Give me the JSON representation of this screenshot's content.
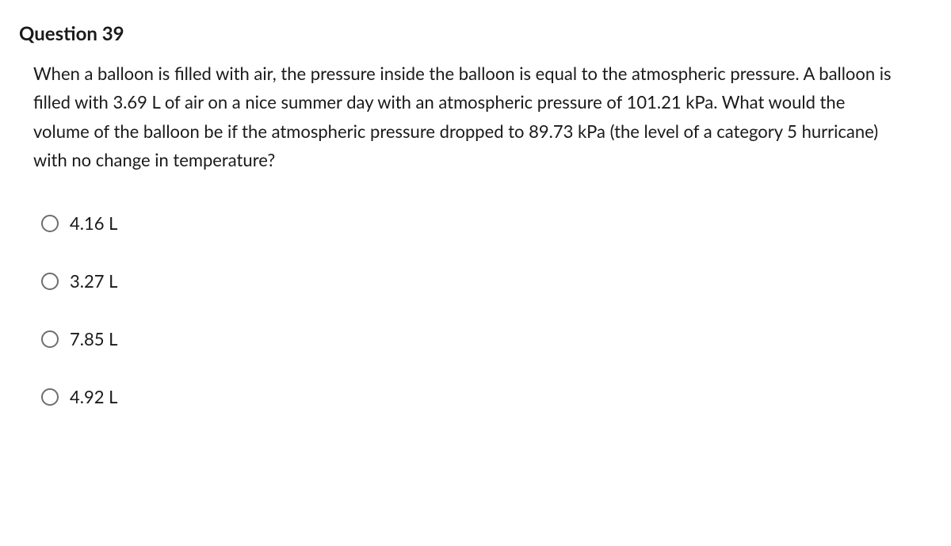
{
  "question": {
    "number": "Question 39",
    "text": "When a balloon is filled with air, the pressure inside the balloon is equal to the atmospheric pressure. A balloon is filled with 3.69 L of air on a nice summer day with an atmospheric pressure of 101.21 kPa. What would the volume of the balloon be if the atmospheric pressure dropped to 89.73 kPa (the level of a category 5 hurricane) with no change in temperature?",
    "options": [
      {
        "label": "4.16 L",
        "selected": false
      },
      {
        "label": "3.27 L",
        "selected": false
      },
      {
        "label": "7.85 L",
        "selected": false
      },
      {
        "label": "4.92 L",
        "selected": false
      }
    ]
  },
  "styling": {
    "background_color": "#ffffff",
    "text_color": "#1a1a1a",
    "radio_border_color": "#6e6e6e",
    "heading_fontsize": 24,
    "body_fontsize": 22,
    "heading_weight": 700
  }
}
